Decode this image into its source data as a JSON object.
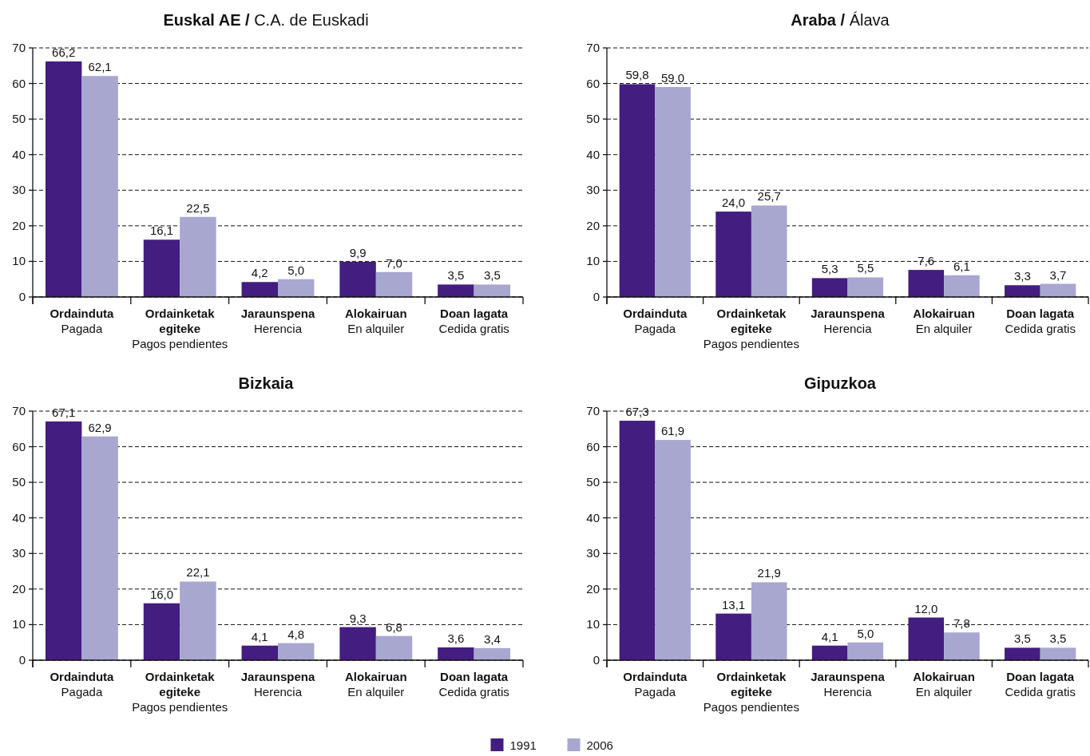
{
  "chart_data": [
    {
      "type": "bar",
      "title": "Euskal AE / C.A. de Euskadi",
      "categories": [
        "Ordainduta\nPagada",
        "Ordainketak egiteke\nPagos pendientes",
        "Jaraunspena\nHerencia",
        "Alokairuan\nEn alquiler",
        "Doan lagata\nCedida gratis"
      ],
      "series": [
        {
          "color": "#431d7f",
          "values": [
            66.2,
            16.1,
            4.2,
            9.9,
            3.5
          ],
          "value_labels": [
            "66,2",
            "16,1",
            "4,2",
            "9,9",
            "3,5"
          ]
        },
        {
          "color": "#a7a7d0",
          "values": [
            62.1,
            22.5,
            5.0,
            7.0,
            3.5
          ],
          "value_labels": [
            "62,1",
            "22,5",
            "5,0",
            "7,0",
            "3,5"
          ]
        }
      ],
      "ylim": [
        0,
        70
      ],
      "yticks": [
        0,
        10,
        20,
        30,
        40,
        50,
        60,
        70
      ],
      "grid": "y"
    },
    {
      "type": "bar",
      "title": "Araba / Álava",
      "categories": [
        "Ordainduta\nPagada",
        "Ordainketak egiteke\nPagos pendientes",
        "Jaraunspena\nHerencia",
        "Alokairuan\nEn alquiler",
        "Doan lagata\nCedida gratis"
      ],
      "series": [
        {
          "color": "#431d7f",
          "values": [
            59.8,
            24.0,
            5.3,
            7.6,
            3.3
          ],
          "value_labels": [
            "59,8",
            "24,0",
            "5,3",
            "7,6",
            "3,3"
          ]
        },
        {
          "color": "#a7a7d0",
          "values": [
            59.0,
            25.7,
            5.5,
            6.1,
            3.7
          ],
          "value_labels": [
            "59,0",
            "25,7",
            "5,5",
            "6,1",
            "3,7"
          ]
        }
      ],
      "ylim": [
        0,
        70
      ],
      "yticks": [
        0,
        10,
        20,
        30,
        40,
        50,
        60,
        70
      ],
      "grid": "y"
    },
    {
      "type": "bar",
      "title": "Bizkaia",
      "categories": [
        "Ordainduta\nPagada",
        "Ordainketak egiteke\nPagos pendientes",
        "Jaraunspena\nHerencia",
        "Alokairuan\nEn alquiler",
        "Doan lagata\nCedida gratis"
      ],
      "series": [
        {
          "color": "#431d7f",
          "values": [
            67.1,
            16.0,
            4.1,
            9.3,
            3.6
          ],
          "value_labels": [
            "67,1",
            "16,0",
            "4,1",
            "9,3",
            "3,6"
          ]
        },
        {
          "color": "#a7a7d0",
          "values": [
            62.9,
            22.1,
            4.8,
            6.8,
            3.4
          ],
          "value_labels": [
            "62,9",
            "22,1",
            "4,8",
            "6,8",
            "3,4"
          ]
        }
      ],
      "ylim": [
        0,
        70
      ],
      "yticks": [
        0,
        10,
        20,
        30,
        40,
        50,
        60,
        70
      ],
      "grid": "y"
    },
    {
      "type": "bar",
      "title": "Gipuzkoa",
      "categories": [
        "Ordainduta\nPagada",
        "Ordainketak egiteke\nPagos pendientes",
        "Jaraunspena\nHerencia",
        "Alokairuan\nEn alquiler",
        "Doan lagata\nCedida gratis"
      ],
      "series": [
        {
          "name": "1991",
          "color": "#431d7f",
          "values": [
            67.3,
            13.1,
            4.1,
            12.0,
            3.5
          ],
          "value_labels": [
            "67,3",
            "13,1",
            "4,1",
            "12,0",
            "3,5"
          ]
        },
        {
          "name": "2006",
          "color": "#a7a7d0",
          "values": [
            61.9,
            21.9,
            5.0,
            7.8,
            3.5
          ],
          "value_labels": [
            "61,9",
            "21,9",
            "5,0",
            "7,8",
            "3,5"
          ]
        }
      ],
      "ylim": [
        0,
        70
      ],
      "yticks": [
        0,
        10,
        20,
        30,
        40,
        50,
        60,
        70
      ],
      "grid": "y",
      "legend": "bottom"
    }
  ]
}
